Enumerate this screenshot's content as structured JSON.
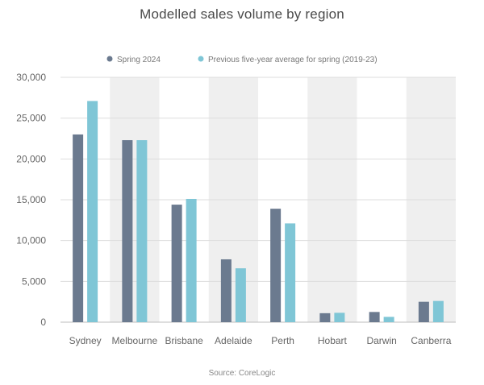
{
  "chart_data": {
    "type": "bar",
    "title": "Modelled sales volume by region",
    "xlabel": "",
    "ylabel": "",
    "ylim": [
      0,
      30000
    ],
    "yticks": [
      0,
      5000,
      10000,
      15000,
      20000,
      25000,
      30000
    ],
    "ytick_labels": [
      "0",
      "5,000",
      "10,000",
      "15,000",
      "20,000",
      "25,000",
      "30,000"
    ],
    "categories": [
      "Sydney",
      "Melbourne",
      "Brisbane",
      "Adelaide",
      "Perth",
      "Hobart",
      "Darwin",
      "Canberra"
    ],
    "series": [
      {
        "name": "Spring 2024",
        "color": "#6b7a8f",
        "values": [
          23000,
          22300,
          14400,
          7700,
          13900,
          1100,
          1250,
          2500
        ]
      },
      {
        "name": "Previous five-year average for spring (2019-23)",
        "color": "#7fc6d6",
        "values": [
          27100,
          22300,
          15100,
          6600,
          12100,
          1150,
          650,
          2600
        ]
      }
    ],
    "grid": true,
    "legend_position": "top-center",
    "alternate_band_color": "#efefef",
    "source": "Source: CoreLogic"
  }
}
